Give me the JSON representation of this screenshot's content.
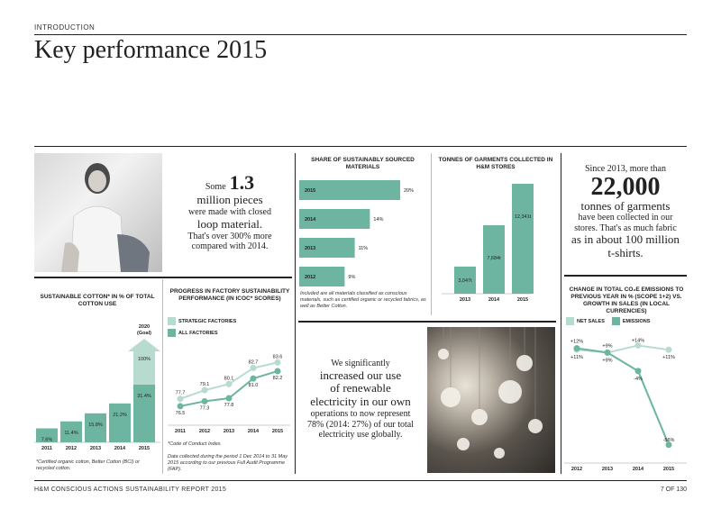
{
  "header": {
    "section": "INTRODUCTION",
    "title": "Key performance 2015"
  },
  "closed_loop": {
    "pre": "Some",
    "number": "1.3",
    "line1": "million pieces",
    "line2": "were made with closed",
    "line3": "loop material.",
    "line4": "That's over 300% more",
    "line5": "compared with 2014."
  },
  "garments_stat": {
    "line1": "Since 2013, more than",
    "number": "22,000",
    "line2": "tonnes of garments",
    "line3": "have been collected in our",
    "line4": "stores. That's as much fabric",
    "line5": "as in about 100 million",
    "line6": "t-shirts."
  },
  "electricity": {
    "line1": "We significantly",
    "line2": "increased our use",
    "line3": "of renewable",
    "line4": "electricity in our own",
    "line5": "operations to now represent",
    "line6": "78% (2014: 27%) of our total",
    "line7": "electricity use globally."
  },
  "colors": {
    "accent": "#6db5a0",
    "light": "#b8dbd0",
    "text": "#222222"
  },
  "chart_data": [
    {
      "id": "sourced_materials",
      "type": "bar",
      "orientation": "horizontal",
      "title": "SHARE OF SUSTAINABLY SOURCED MATERIALS",
      "categories": [
        "2015",
        "2014",
        "2013",
        "2012"
      ],
      "values": [
        20,
        14,
        11,
        9
      ],
      "value_labels": [
        "20%",
        "14%",
        "11%",
        "9%"
      ],
      "note": "Included are all materials classified as conscious materials, such as certified organic or recycled fabrics, as well as Better Cotton."
    },
    {
      "id": "garments_collected",
      "type": "bar",
      "title": "TONNES OF GARMENTS COLLECTED IN H&M STORES",
      "categories": [
        "2013",
        "2014",
        "2015"
      ],
      "values": [
        3047,
        7684,
        12341
      ],
      "value_labels": [
        "3,047t",
        "7,684t",
        "12,341t"
      ]
    },
    {
      "id": "sustainable_cotton",
      "type": "bar",
      "title": "SUSTAINABLE COTTON* IN % OF TOTAL COTTON USE",
      "categories": [
        "2011",
        "2012",
        "2013",
        "2014",
        "2015"
      ],
      "values": [
        7.6,
        11.4,
        15.8,
        21.2,
        31.4
      ],
      "value_labels": [
        "7.6%",
        "11.4%",
        "15.8%",
        "21.2%",
        "31.4%"
      ],
      "goal": {
        "label": "2020 (Goal)",
        "value_label": "100%"
      },
      "note": "*Certified organic cotton, Better Cotton (BCI) or recycled cotton."
    },
    {
      "id": "factory_progress",
      "type": "line",
      "title": "PROGRESS IN FACTORY SUSTAINABILITY PERFORMANCE (IN ICOC* SCORES)",
      "categories": [
        "2011",
        "2012",
        "2013",
        "2014",
        "2015"
      ],
      "series": [
        {
          "name": "STRATEGIC FACTORIES",
          "values": [
            77.7,
            79.1,
            80.1,
            82.7,
            83.6
          ],
          "value_labels": [
            "77.7",
            "79.1",
            "80.1",
            "82.7",
            "83.6"
          ]
        },
        {
          "name": "ALL FACTORIES",
          "values": [
            76.5,
            77.3,
            77.8,
            81.0,
            82.2
          ],
          "value_labels": [
            "76.5",
            "77.3",
            "77.8",
            "81.0",
            "82.2"
          ]
        }
      ],
      "ylim": [
        74,
        86
      ],
      "notes": [
        "*Code of Conduct Index.",
        "Data collected during the period 1 Dec 2014 to 31 May 2015 according to our previous Full Audit Programme (FAP)."
      ]
    },
    {
      "id": "co2_emissions",
      "type": "line",
      "title": "CHANGE IN TOTAL CO₂e EMISSIONS TO PREVIOUS YEAR IN % (SCOPE 1+2) VS. GROWTH IN SALES (IN LOCAL CURRENCIES)",
      "categories": [
        "2012",
        "2013",
        "2014",
        "2015"
      ],
      "series": [
        {
          "name": "NET SALES",
          "values": [
            11,
            9,
            14,
            11
          ],
          "value_labels": [
            "+11%",
            "+9%",
            "+14%",
            "+11%"
          ]
        },
        {
          "name": "EMISSIONS",
          "values": [
            12,
            9,
            -4,
            -56
          ],
          "value_labels": [
            "+12%",
            "+9%",
            "-4%",
            "-56%"
          ]
        }
      ],
      "ylim": [
        -65,
        20
      ]
    }
  ],
  "footer": {
    "left": "H&M CONSCIOUS ACTIONS SUSTAINABILITY REPORT 2015",
    "right": "7 OF 130"
  }
}
